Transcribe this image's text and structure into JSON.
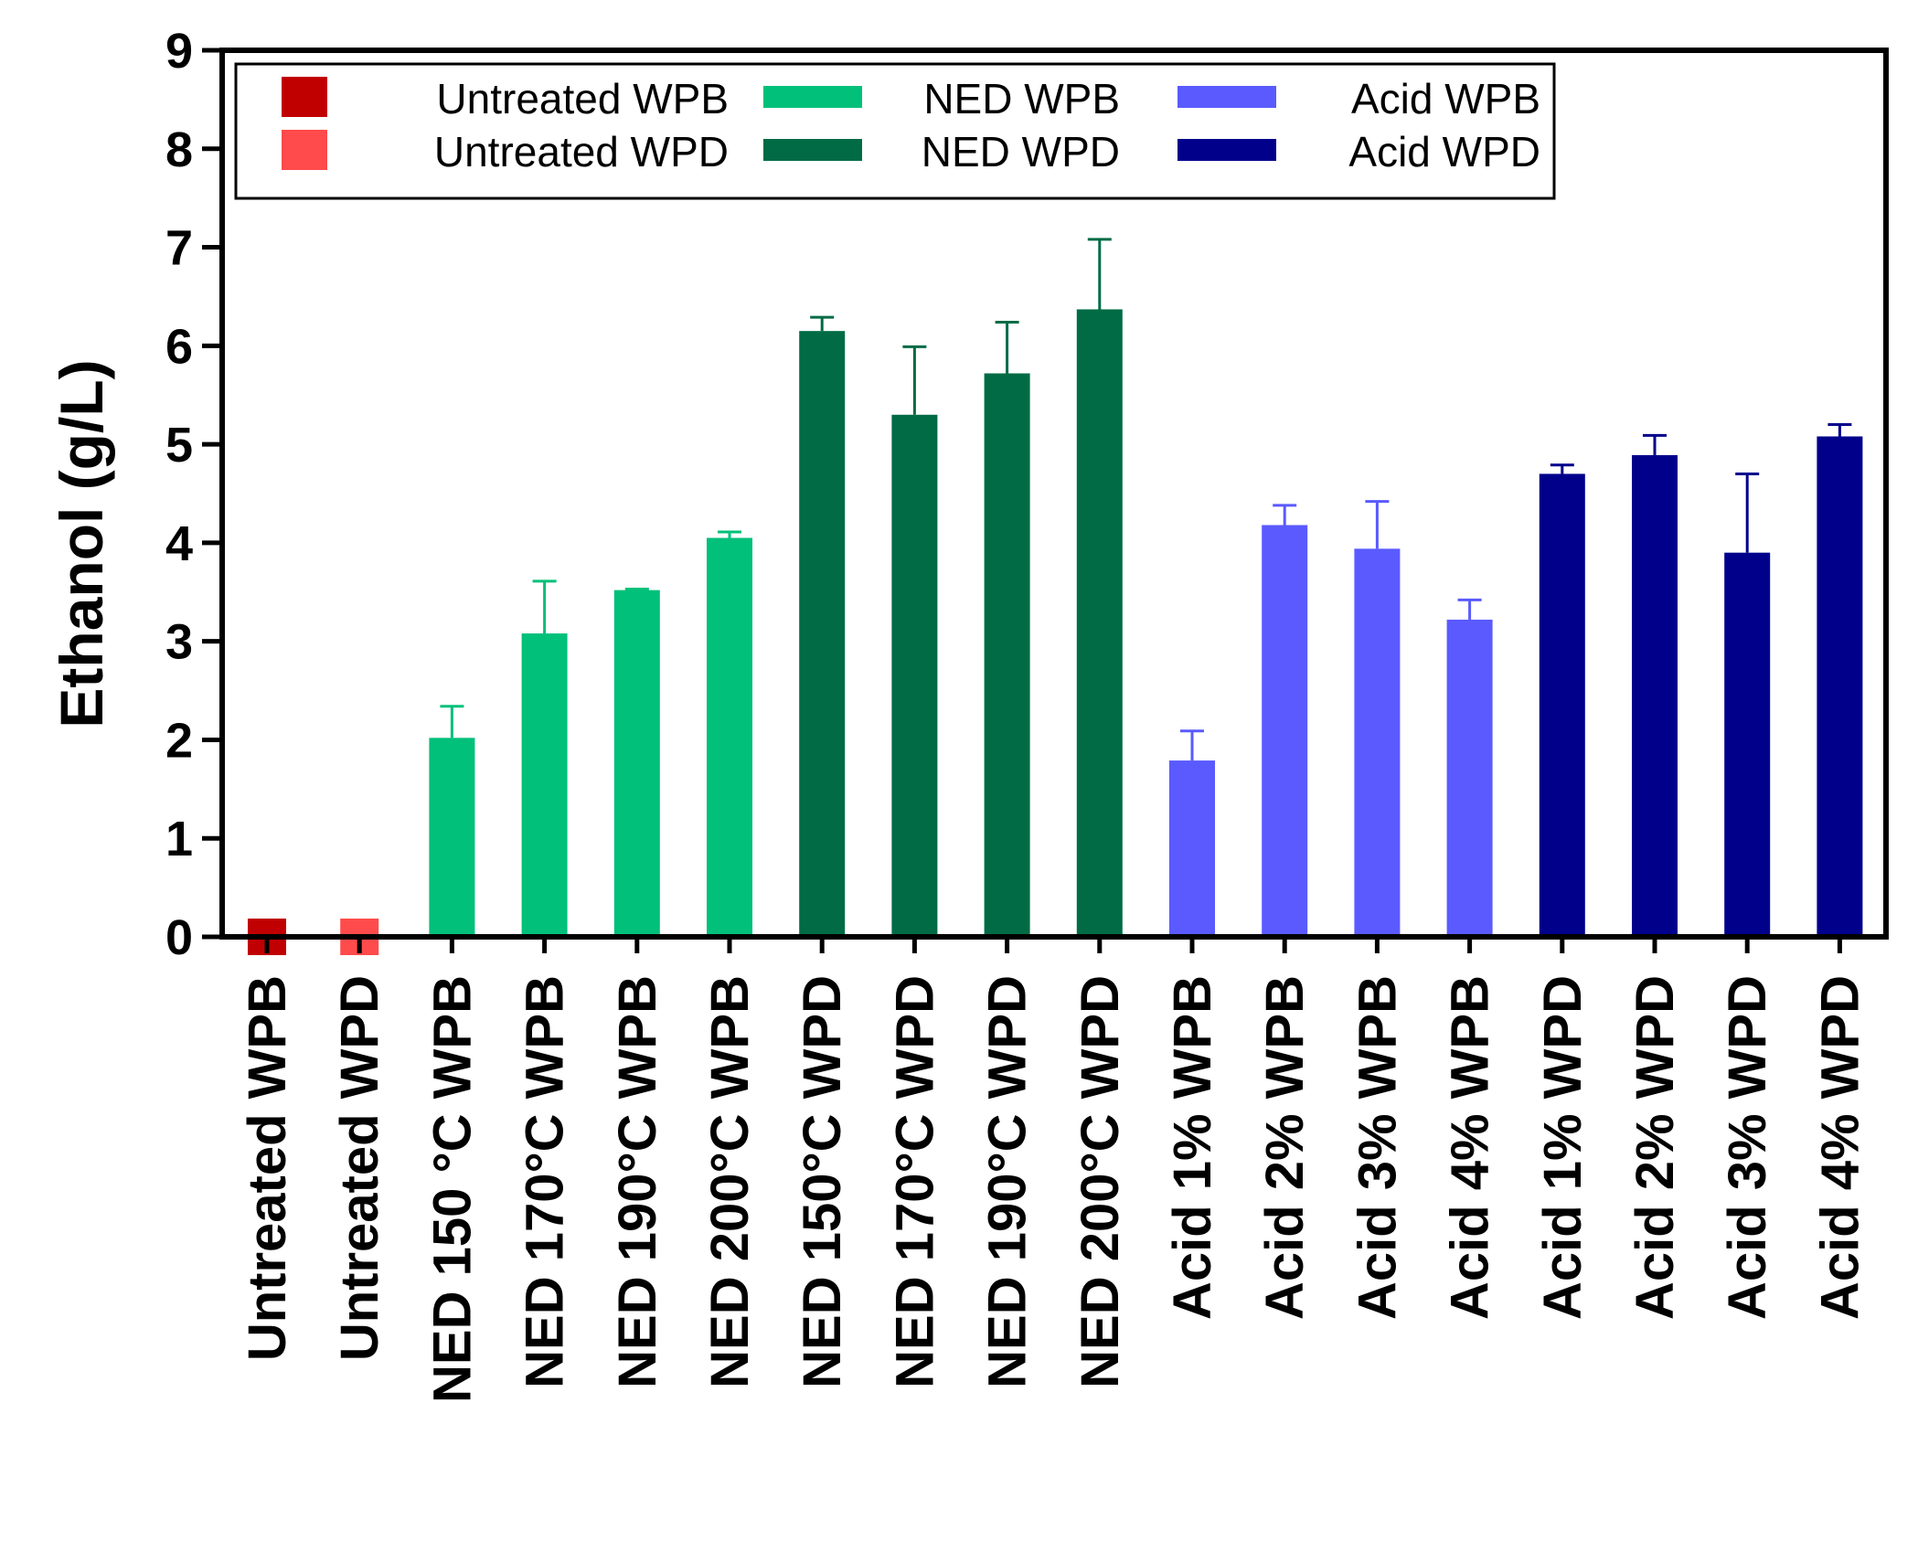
{
  "chart_data": {
    "type": "bar",
    "title": "",
    "xlabel": "",
    "ylabel": "Ethanol (g/L)",
    "ylim": [
      0,
      9
    ],
    "yticks": [
      0,
      1,
      2,
      3,
      4,
      5,
      6,
      7,
      8,
      9
    ],
    "grid": false,
    "legend_position": "top",
    "categories": [
      "Untreated WPB",
      "Untreated WPD",
      "NED 150 °C WPB",
      "NED 170°C WPB",
      "NED 190°C WPB",
      "NED 200°C WPB",
      "NED 150°C WPD",
      "NED 170°C WPD",
      "NED 190°C WPD",
      "NED 200°C WPD",
      "Acid 1% WPB",
      "Acid 2% WPB",
      "Acid 3% WPB",
      "Acid 4% WPB",
      "Acid 1% WPD",
      "Acid 2% WPD",
      "Acid 3% WPD",
      "Acid 4% WPD"
    ],
    "values": [
      0,
      0,
      2.02,
      3.08,
      3.52,
      4.05,
      6.15,
      5.3,
      5.72,
      6.37,
      1.79,
      4.18,
      3.94,
      3.22,
      4.7,
      4.89,
      3.9,
      5.08
    ],
    "errors": [
      0,
      0,
      0.32,
      0.53,
      0.01,
      0.06,
      0.14,
      0.69,
      0.52,
      0.71,
      0.3,
      0.2,
      0.48,
      0.2,
      0.09,
      0.2,
      0.8,
      0.12
    ],
    "groups": [
      "Untreated WPB",
      "Untreated WPD",
      "NED WPB",
      "NED WPB",
      "NED WPB",
      "NED WPB",
      "NED WPD",
      "NED WPD",
      "NED WPD",
      "NED WPD",
      "Acid WPB",
      "Acid WPB",
      "Acid WPB",
      "Acid WPB",
      "Acid WPD",
      "Acid WPD",
      "Acid WPD",
      "Acid WPD"
    ],
    "legend": [
      {
        "label": "Untreated WPB",
        "color": "#c00000",
        "symbol": "square"
      },
      {
        "label": "Untreated WPD",
        "color": "#ff4b4b",
        "symbol": "square"
      },
      {
        "label": "NED WPB",
        "color": "#00c07a",
        "symbol": "bar"
      },
      {
        "label": "NED WPD",
        "color": "#006b45",
        "symbol": "bar"
      },
      {
        "label": "Acid WPB",
        "color": "#5a5aff",
        "symbol": "bar"
      },
      {
        "label": "Acid WPD",
        "color": "#00008b",
        "symbol": "bar"
      }
    ]
  }
}
